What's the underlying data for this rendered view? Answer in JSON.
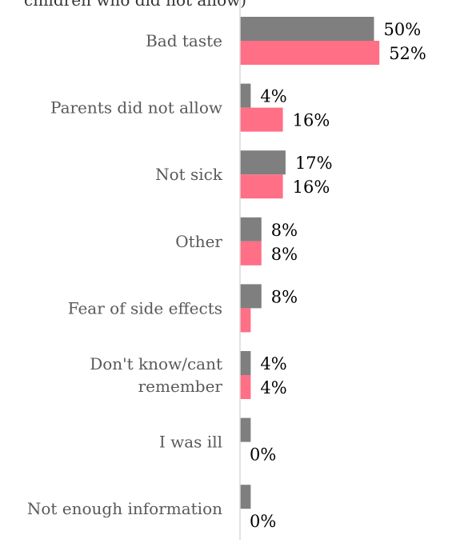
{
  "chart_data": {
    "type": "bar",
    "orientation": "horizontal",
    "title_fragment": "children who did not allow)",
    "categories": [
      "Bad taste",
      "Parents did not allow",
      "Not sick",
      "Other",
      "Fear of side effects",
      "Don't know/cant remember",
      "I was ill",
      "Not enough information"
    ],
    "series": [
      {
        "values": [
          50,
          4,
          17,
          8,
          8,
          4,
          4,
          4
        ],
        "labels": [
          "50%",
          "4%",
          "17%",
          "8%",
          "8%",
          "4%",
          "",
          ""
        ],
        "color": "#7f7f7f"
      },
      {
        "values": [
          52,
          16,
          16,
          8,
          4,
          4,
          0,
          0
        ],
        "labels": [
          "52%",
          "16%",
          "16%",
          "8%",
          "",
          "4%",
          "0%",
          "0%"
        ],
        "color": "#ff6f86"
      }
    ],
    "xlim": [
      0,
      60
    ],
    "grid": false,
    "legend": "none"
  }
}
